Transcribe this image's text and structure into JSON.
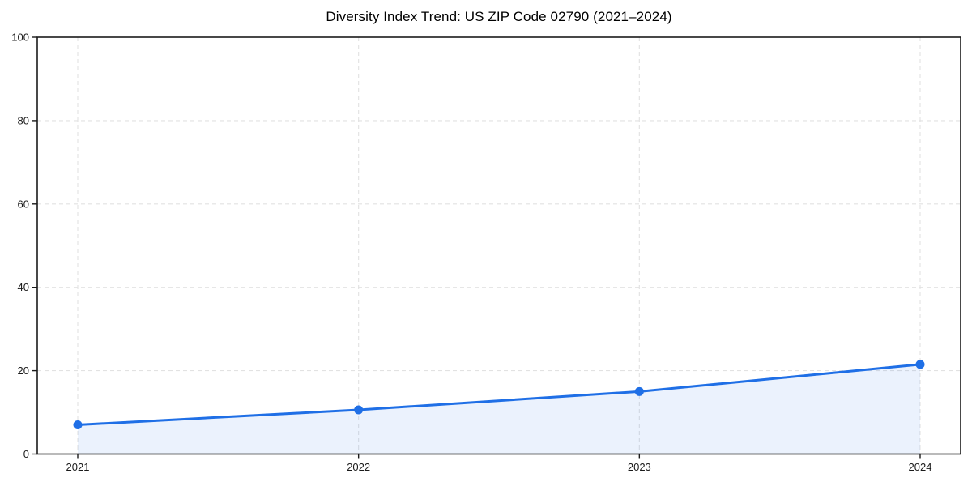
{
  "chart_data": {
    "type": "line",
    "title": "Diversity Index Trend: US ZIP Code 02790 (2021–2024)",
    "categories": [
      "2021",
      "2022",
      "2023",
      "2024"
    ],
    "values": [
      7.0,
      10.6,
      15.0,
      21.5
    ],
    "xlabel": "",
    "ylabel": "",
    "ylim": [
      0,
      100
    ],
    "yticks": [
      0,
      20,
      40,
      60,
      80,
      100
    ],
    "grid": true,
    "grid_style": "dashed",
    "legend": "none",
    "area_fill": true,
    "marker": "circle",
    "colors": {
      "line": "#1f6fe6",
      "marker": "#1f6fe6",
      "area_fill": "#1f6fe6",
      "area_fill_opacity": 0.09,
      "grid": "#e2e2e2",
      "axis": "#1a1a1a",
      "tick_text": "#1a1a1a",
      "background": "#ffffff"
    }
  }
}
